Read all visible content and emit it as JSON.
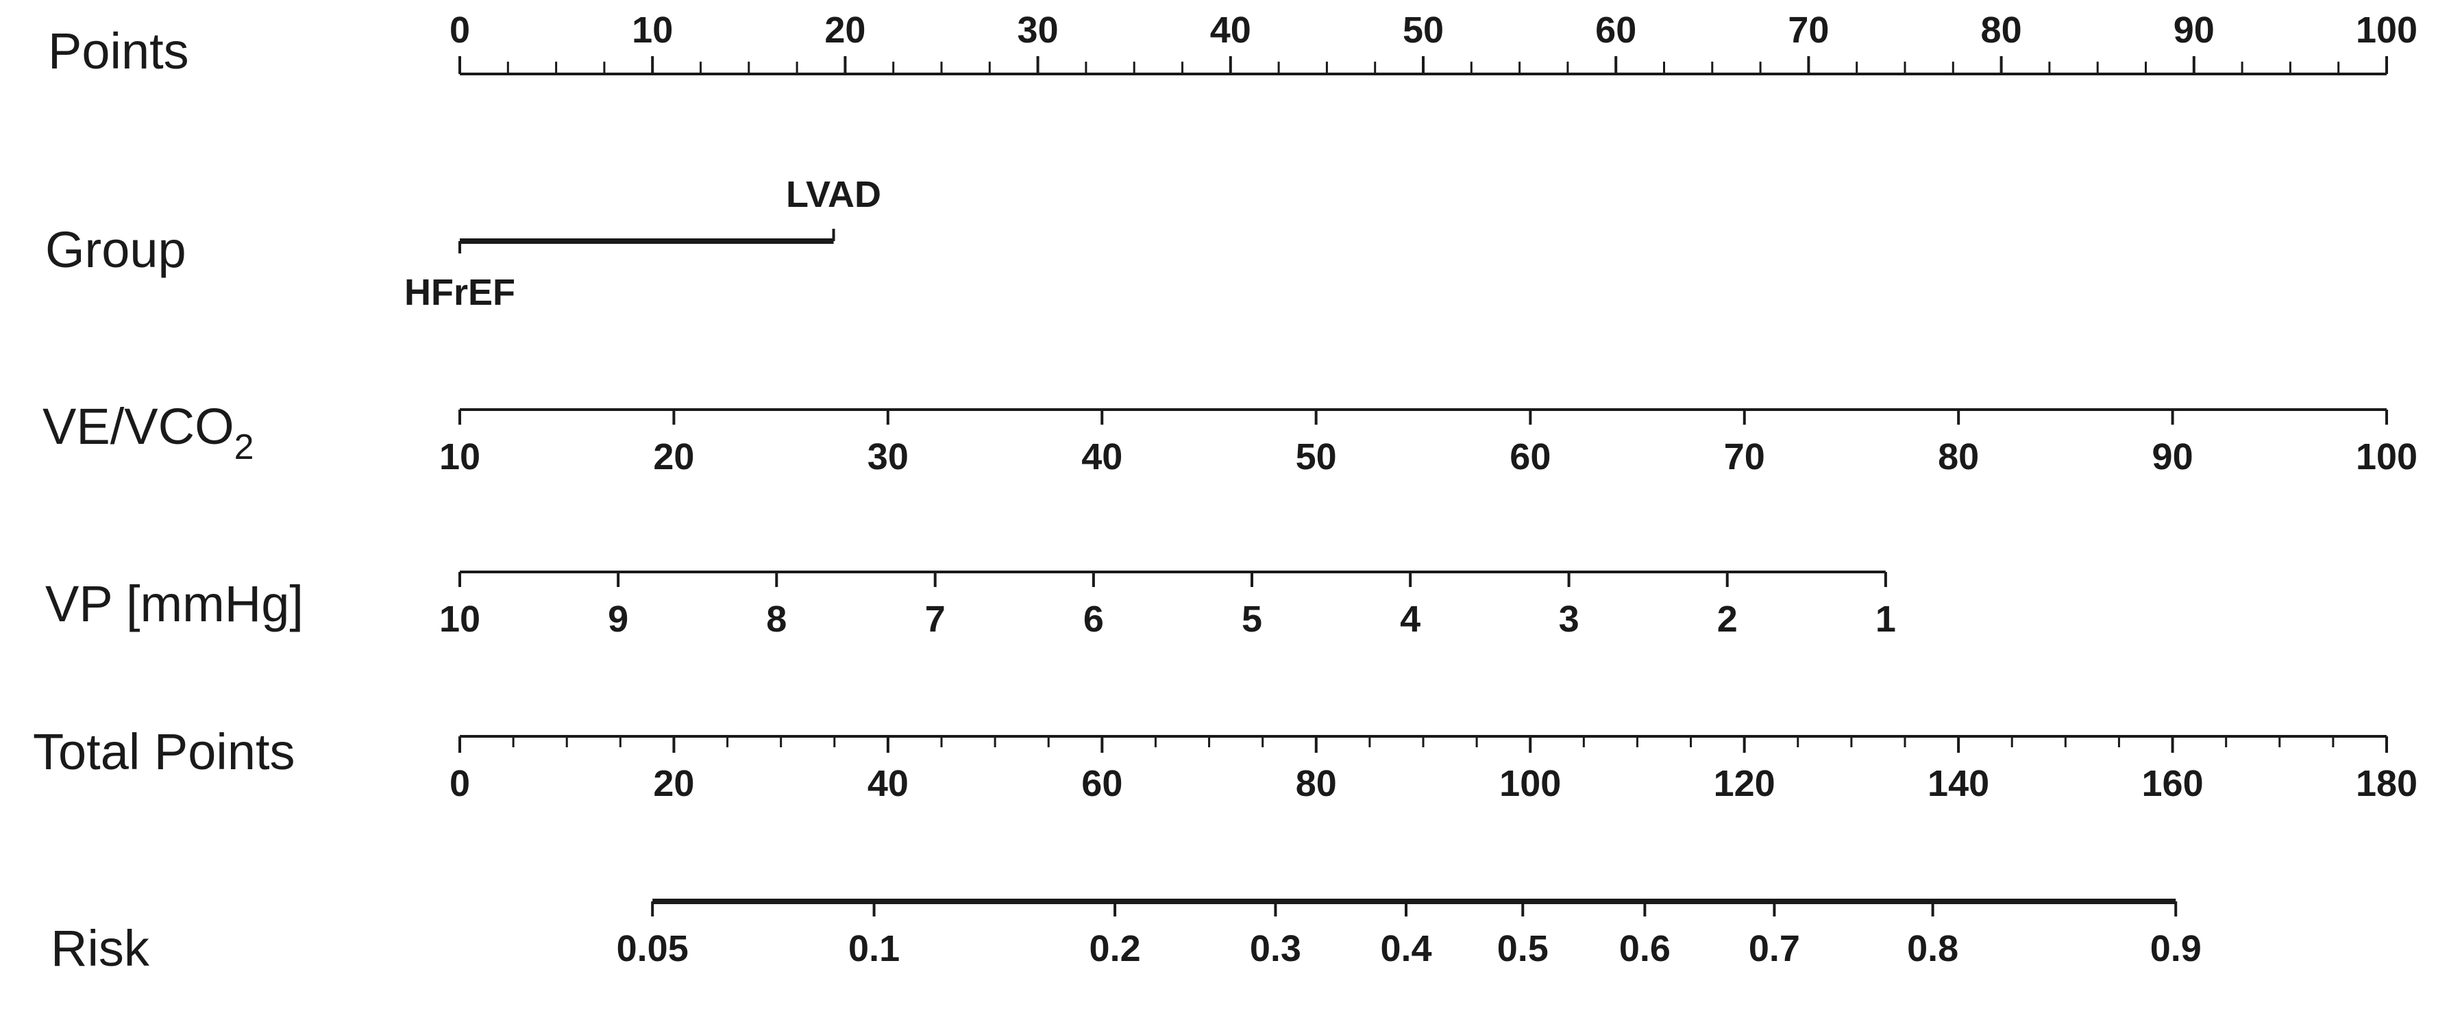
{
  "chart_data": {
    "type": "nomogram",
    "rows": [
      {
        "id": "points",
        "label": "Points",
        "range": [
          0,
          100
        ],
        "ticks": [
          {
            "value": 0,
            "label": "0"
          },
          {
            "value": 10,
            "label": "10"
          },
          {
            "value": 20,
            "label": "20"
          },
          {
            "value": 30,
            "label": "30"
          },
          {
            "value": 40,
            "label": "40"
          },
          {
            "value": 50,
            "label": "50"
          },
          {
            "value": 60,
            "label": "60"
          },
          {
            "value": 70,
            "label": "70"
          },
          {
            "value": 80,
            "label": "80"
          },
          {
            "value": 90,
            "label": "90"
          },
          {
            "value": 100,
            "label": "100"
          }
        ],
        "minor_step": 2.5
      },
      {
        "id": "group",
        "label": "Group",
        "categories": [
          {
            "label": "HFrEF",
            "points": 0
          },
          {
            "label": "LVAD",
            "points": 19.4
          }
        ]
      },
      {
        "id": "ve_vco2",
        "label": "VE/VCO",
        "label_subscript": "2",
        "points_range": [
          0,
          100
        ],
        "ticks": [
          {
            "value": 10,
            "label": "10",
            "points": 0
          },
          {
            "value": 20,
            "label": "20",
            "points": 11.11
          },
          {
            "value": 30,
            "label": "30",
            "points": 22.22
          },
          {
            "value": 40,
            "label": "40",
            "points": 33.33
          },
          {
            "value": 50,
            "label": "50",
            "points": 44.44
          },
          {
            "value": 60,
            "label": "60",
            "points": 55.56
          },
          {
            "value": 70,
            "label": "70",
            "points": 66.67
          },
          {
            "value": 80,
            "label": "80",
            "points": 77.78
          },
          {
            "value": 90,
            "label": "90",
            "points": 88.89
          },
          {
            "value": 100,
            "label": "100",
            "points": 100
          }
        ]
      },
      {
        "id": "vp",
        "label": "VP [mmHg]",
        "ticks": [
          {
            "value": 10,
            "label": "10",
            "points": 0
          },
          {
            "value": 9,
            "label": "9",
            "points": 8.22
          },
          {
            "value": 8,
            "label": "8",
            "points": 16.44
          },
          {
            "value": 7,
            "label": "7",
            "points": 24.67
          },
          {
            "value": 6,
            "label": "6",
            "points": 32.89
          },
          {
            "value": 5,
            "label": "5",
            "points": 41.11
          },
          {
            "value": 4,
            "label": "4",
            "points": 49.33
          },
          {
            "value": 3,
            "label": "3",
            "points": 57.56
          },
          {
            "value": 2,
            "label": "2",
            "points": 65.78
          },
          {
            "value": 1,
            "label": "1",
            "points": 74
          }
        ]
      },
      {
        "id": "total_points",
        "label": "Total Points",
        "range": [
          0,
          180
        ],
        "ticks": [
          {
            "value": 0,
            "label": "0"
          },
          {
            "value": 20,
            "label": "20"
          },
          {
            "value": 40,
            "label": "40"
          },
          {
            "value": 60,
            "label": "60"
          },
          {
            "value": 80,
            "label": "80"
          },
          {
            "value": 100,
            "label": "100"
          },
          {
            "value": 120,
            "label": "120"
          },
          {
            "value": 140,
            "label": "140"
          },
          {
            "value": 160,
            "label": "160"
          },
          {
            "value": 180,
            "label": "180"
          }
        ],
        "minor_step": 5
      },
      {
        "id": "risk",
        "label": "Risk",
        "ticks": [
          {
            "value": 0.05,
            "label": "0.05",
            "total_points": 18
          },
          {
            "value": 0.1,
            "label": "0.1",
            "total_points": 38.7
          },
          {
            "value": 0.2,
            "label": "0.2",
            "total_points": 61.2
          },
          {
            "value": 0.3,
            "label": "0.3",
            "total_points": 76.2
          },
          {
            "value": 0.4,
            "label": "0.4",
            "total_points": 88.4
          },
          {
            "value": 0.5,
            "label": "0.5",
            "total_points": 99.3
          },
          {
            "value": 0.6,
            "label": "0.6",
            "total_points": 110.7
          },
          {
            "value": 0.7,
            "label": "0.7",
            "total_points": 122.8
          },
          {
            "value": 0.8,
            "label": "0.8",
            "total_points": 137.6
          },
          {
            "value": 0.9,
            "label": "0.9",
            "total_points": 160.3
          }
        ]
      }
    ]
  }
}
